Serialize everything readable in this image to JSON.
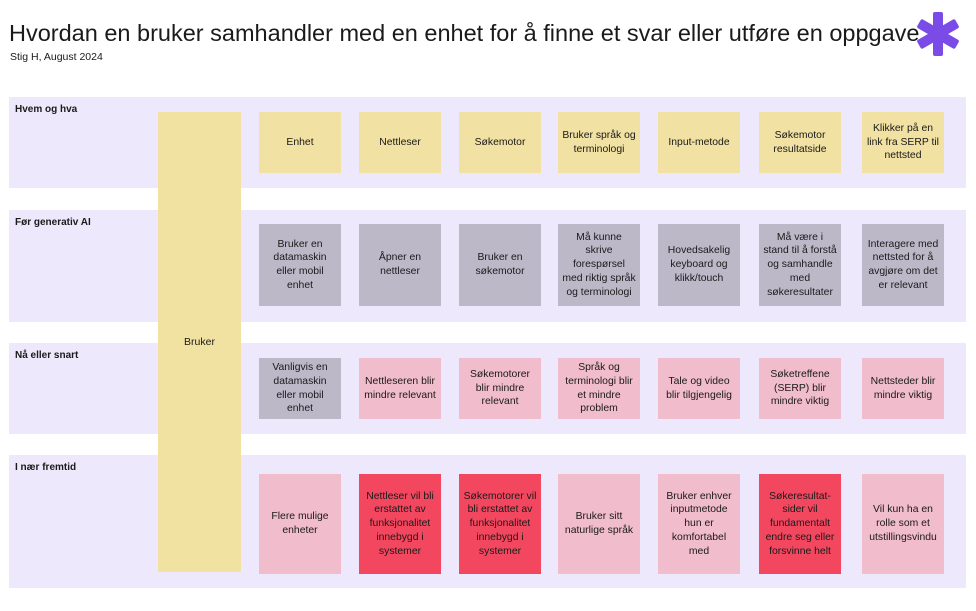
{
  "header": {
    "title": "Hvordan en bruker samhandler med en enhet for å finne et svar eller utføre en oppgave",
    "subtitle": "Stig H, August 2024"
  },
  "logo": {
    "icon": "asterisk-logo-icon",
    "color": "#7b4be8"
  },
  "colors": {
    "row_background": "#ede8fb",
    "yellow": "#f1e1a2",
    "gray": "#bcb8c8",
    "pink": "#f1bccb",
    "red": "#f2475f"
  },
  "actor": {
    "label": "Bruker"
  },
  "rows": [
    {
      "label": "Hvem og hva",
      "cells": [
        {
          "text": "Enhet",
          "color": "yellow"
        },
        {
          "text": "Nettleser",
          "color": "yellow"
        },
        {
          "text": "Søkemotor",
          "color": "yellow"
        },
        {
          "text": "Bruker språk og terminologi",
          "color": "yellow"
        },
        {
          "text": "Input-metode",
          "color": "yellow"
        },
        {
          "text": "Søkemotor resultatside",
          "color": "yellow"
        },
        {
          "text": "Klikker på en link fra SERP til nettsted",
          "color": "yellow"
        }
      ]
    },
    {
      "label": "Før generativ AI",
      "cells": [
        {
          "text": "Bruker en datamaskin eller mobil enhet",
          "color": "gray"
        },
        {
          "text": "Åpner en nettleser",
          "color": "gray"
        },
        {
          "text": "Bruker en søkemotor",
          "color": "gray"
        },
        {
          "text": "Må kunne skrive forespørsel med riktig språk og terminologi",
          "color": "gray"
        },
        {
          "text": "Hovedsakelig keyboard og klikk/touch",
          "color": "gray"
        },
        {
          "text": "Må være i stand til å forstå og samhandle med søkeresultater",
          "color": "gray"
        },
        {
          "text": "Interagere med nettsted for å avgjøre om det er relevant",
          "color": "gray"
        }
      ]
    },
    {
      "label": "Nå eller snart",
      "cells": [
        {
          "text": "Vanligvis en datamaskin eller mobil enhet",
          "color": "gray"
        },
        {
          "text": "Nettleseren blir mindre relevant",
          "color": "pink"
        },
        {
          "text": "Søkemotorer blir mindre relevant",
          "color": "pink"
        },
        {
          "text": "Språk og terminologi blir et mindre problem",
          "color": "pink"
        },
        {
          "text": "Tale og video blir tilgjengelig",
          "color": "pink"
        },
        {
          "text": "Søketreffene (SERP) blir mindre viktig",
          "color": "pink"
        },
        {
          "text": "Nettsteder blir mindre viktig",
          "color": "pink"
        }
      ]
    },
    {
      "label": "I nær fremtid",
      "cells": [
        {
          "text": "Flere mulige enheter",
          "color": "pink"
        },
        {
          "text": "Nettleser vil bli erstattet av funksjonalitet innebygd i systemer",
          "color": "red"
        },
        {
          "text": "Søkemotorer vil bli erstattet av funksjonalitet innebygd i systemer",
          "color": "red"
        },
        {
          "text": "Bruker sitt naturlige språk",
          "color": "pink"
        },
        {
          "text": "Bruker enhver inputmetode hun er komfortabel med",
          "color": "pink"
        },
        {
          "text": "Søkeresultat-sider vil fundamentalt endre seg eller forsvinne helt",
          "color": "red"
        },
        {
          "text": "Vil kun ha en rolle som et utstillingsvindu",
          "color": "pink"
        }
      ]
    }
  ]
}
